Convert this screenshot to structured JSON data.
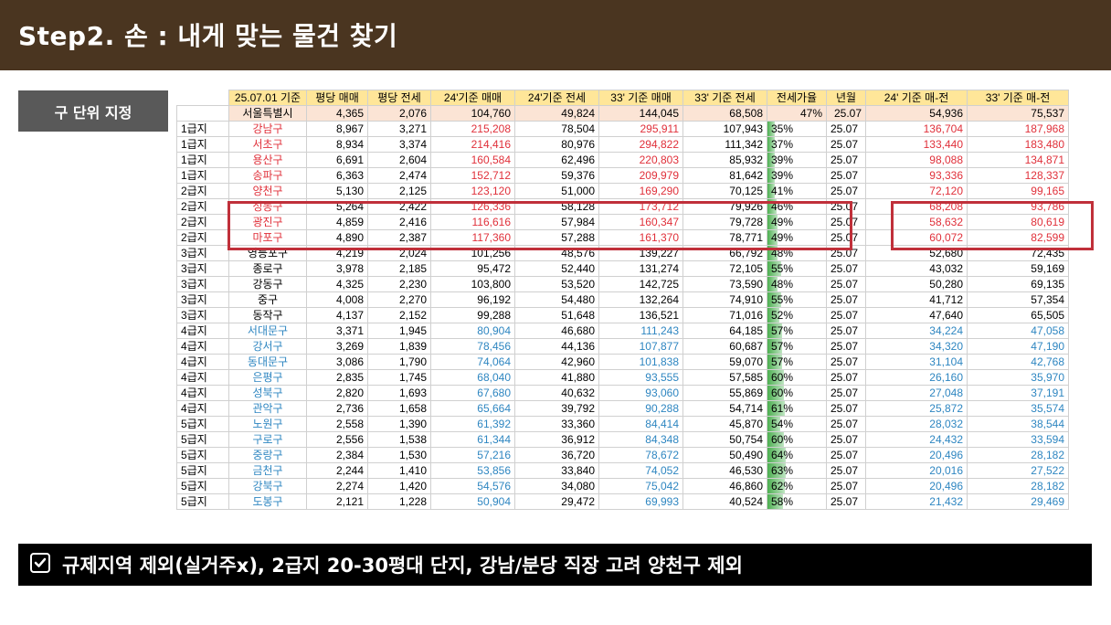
{
  "title": "Step2. 손 : 내게 맞는 물건 찾기",
  "badge": "구 단위 지정",
  "bottom_note": "규제지역 제외(실거주x), 2급지 20-30평대 단지, 강남/분당 직장 고려 양천구 제외",
  "colors": {
    "title_bg": "#4a3520",
    "header_bg": "#ffe699",
    "seoul_bg": "#fbe4d5",
    "red": "#e0303a",
    "blue": "#2e86c1",
    "highlight_border": "#c0303a"
  },
  "icons": {
    "bottom_check": "checkbox-check-icon"
  },
  "table": {
    "headers": [
      "25.07.01 기준",
      "평당 매매",
      "평당 전세",
      "24'기준 매매",
      "24'기준 전세",
      "33' 기준 매매",
      "33' 기준 전세",
      "전세가율",
      "년월",
      "24' 기준 매-전",
      "33' 기준 매-전"
    ],
    "seoul": [
      "서울특별시",
      "4,365",
      "2,076",
      "104,760",
      "49,824",
      "144,045",
      "68,508",
      "47%",
      "25.07",
      "54,936",
      "75,537"
    ],
    "rows": [
      {
        "tier": "1급지",
        "name": "강남구",
        "v": [
          "8,967",
          "3,271",
          "215,208",
          "78,504",
          "295,911",
          "107,943",
          "35%",
          "25.07",
          "136,704",
          "187,968"
        ],
        "color": "red",
        "ratio": 35
      },
      {
        "tier": "1급지",
        "name": "서초구",
        "v": [
          "8,934",
          "3,374",
          "214,416",
          "80,976",
          "294,822",
          "111,342",
          "37%",
          "25.07",
          "133,440",
          "183,480"
        ],
        "color": "red",
        "ratio": 37
      },
      {
        "tier": "1급지",
        "name": "용산구",
        "v": [
          "6,691",
          "2,604",
          "160,584",
          "62,496",
          "220,803",
          "85,932",
          "39%",
          "25.07",
          "98,088",
          "134,871"
        ],
        "color": "red",
        "ratio": 39
      },
      {
        "tier": "1급지",
        "name": "송파구",
        "v": [
          "6,363",
          "2,474",
          "152,712",
          "59,376",
          "209,979",
          "81,642",
          "39%",
          "25.07",
          "93,336",
          "128,337"
        ],
        "color": "red",
        "ratio": 39
      },
      {
        "tier": "2급지",
        "name": "양천구",
        "v": [
          "5,130",
          "2,125",
          "123,120",
          "51,000",
          "169,290",
          "70,125",
          "41%",
          "25.07",
          "72,120",
          "99,165"
        ],
        "color": "red",
        "ratio": 41
      },
      {
        "tier": "2급지",
        "name": "성동구",
        "v": [
          "5,264",
          "2,422",
          "126,336",
          "58,128",
          "173,712",
          "79,926",
          "46%",
          "25.07",
          "68,208",
          "93,786"
        ],
        "color": "red",
        "ratio": 46
      },
      {
        "tier": "2급지",
        "name": "광진구",
        "v": [
          "4,859",
          "2,416",
          "116,616",
          "57,984",
          "160,347",
          "79,728",
          "49%",
          "25.07",
          "58,632",
          "80,619"
        ],
        "color": "red",
        "ratio": 49
      },
      {
        "tier": "2급지",
        "name": "마포구",
        "v": [
          "4,890",
          "2,387",
          "117,360",
          "57,288",
          "161,370",
          "78,771",
          "49%",
          "25.07",
          "60,072",
          "82,599"
        ],
        "color": "red",
        "ratio": 49
      },
      {
        "tier": "3급지",
        "name": "영등포구",
        "v": [
          "4,219",
          "2,024",
          "101,256",
          "48,576",
          "139,227",
          "66,792",
          "48%",
          "25.07",
          "52,680",
          "72,435"
        ],
        "color": "black",
        "ratio": 48
      },
      {
        "tier": "3급지",
        "name": "종로구",
        "v": [
          "3,978",
          "2,185",
          "95,472",
          "52,440",
          "131,274",
          "72,105",
          "55%",
          "25.07",
          "43,032",
          "59,169"
        ],
        "color": "black",
        "ratio": 55
      },
      {
        "tier": "3급지",
        "name": "강동구",
        "v": [
          "4,325",
          "2,230",
          "103,800",
          "53,520",
          "142,725",
          "73,590",
          "48%",
          "25.07",
          "50,280",
          "69,135"
        ],
        "color": "black",
        "ratio": 48
      },
      {
        "tier": "3급지",
        "name": "중구",
        "v": [
          "4,008",
          "2,270",
          "96,192",
          "54,480",
          "132,264",
          "74,910",
          "55%",
          "25.07",
          "41,712",
          "57,354"
        ],
        "color": "black",
        "ratio": 55
      },
      {
        "tier": "3급지",
        "name": "동작구",
        "v": [
          "4,137",
          "2,152",
          "99,288",
          "51,648",
          "136,521",
          "71,016",
          "52%",
          "25.07",
          "47,640",
          "65,505"
        ],
        "color": "black",
        "ratio": 52
      },
      {
        "tier": "4급지",
        "name": "서대문구",
        "v": [
          "3,371",
          "1,945",
          "80,904",
          "46,680",
          "111,243",
          "64,185",
          "57%",
          "25.07",
          "34,224",
          "47,058"
        ],
        "color": "blue",
        "ratio": 57
      },
      {
        "tier": "4급지",
        "name": "강서구",
        "v": [
          "3,269",
          "1,839",
          "78,456",
          "44,136",
          "107,877",
          "60,687",
          "57%",
          "25.07",
          "34,320",
          "47,190"
        ],
        "color": "blue",
        "ratio": 57
      },
      {
        "tier": "4급지",
        "name": "동대문구",
        "v": [
          "3,086",
          "1,790",
          "74,064",
          "42,960",
          "101,838",
          "59,070",
          "57%",
          "25.07",
          "31,104",
          "42,768"
        ],
        "color": "blue",
        "ratio": 57
      },
      {
        "tier": "4급지",
        "name": "은평구",
        "v": [
          "2,835",
          "1,745",
          "68,040",
          "41,880",
          "93,555",
          "57,585",
          "60%",
          "25.07",
          "26,160",
          "35,970"
        ],
        "color": "blue",
        "ratio": 60
      },
      {
        "tier": "4급지",
        "name": "성북구",
        "v": [
          "2,820",
          "1,693",
          "67,680",
          "40,632",
          "93,060",
          "55,869",
          "60%",
          "25.07",
          "27,048",
          "37,191"
        ],
        "color": "blue",
        "ratio": 60
      },
      {
        "tier": "4급지",
        "name": "관악구",
        "v": [
          "2,736",
          "1,658",
          "65,664",
          "39,792",
          "90,288",
          "54,714",
          "61%",
          "25.07",
          "25,872",
          "35,574"
        ],
        "color": "blue",
        "ratio": 61
      },
      {
        "tier": "5급지",
        "name": "노원구",
        "v": [
          "2,558",
          "1,390",
          "61,392",
          "33,360",
          "84,414",
          "45,870",
          "54%",
          "25.07",
          "28,032",
          "38,544"
        ],
        "color": "blue",
        "ratio": 54
      },
      {
        "tier": "5급지",
        "name": "구로구",
        "v": [
          "2,556",
          "1,538",
          "61,344",
          "36,912",
          "84,348",
          "50,754",
          "60%",
          "25.07",
          "24,432",
          "33,594"
        ],
        "color": "blue",
        "ratio": 60
      },
      {
        "tier": "5급지",
        "name": "중랑구",
        "v": [
          "2,384",
          "1,530",
          "57,216",
          "36,720",
          "78,672",
          "50,490",
          "64%",
          "25.07",
          "20,496",
          "28,182"
        ],
        "color": "blue",
        "ratio": 64
      },
      {
        "tier": "5급지",
        "name": "금천구",
        "v": [
          "2,244",
          "1,410",
          "53,856",
          "33,840",
          "74,052",
          "46,530",
          "63%",
          "25.07",
          "20,016",
          "27,522"
        ],
        "color": "blue",
        "ratio": 63
      },
      {
        "tier": "5급지",
        "name": "강북구",
        "v": [
          "2,274",
          "1,420",
          "54,576",
          "34,080",
          "75,042",
          "46,860",
          "62%",
          "25.07",
          "20,496",
          "28,182"
        ],
        "color": "blue",
        "ratio": 62
      },
      {
        "tier": "5급지",
        "name": "도봉구",
        "v": [
          "2,121",
          "1,228",
          "50,904",
          "29,472",
          "69,993",
          "40,524",
          "58%",
          "25.07",
          "21,432",
          "29,469"
        ],
        "color": "blue",
        "ratio": 58
      }
    ]
  }
}
